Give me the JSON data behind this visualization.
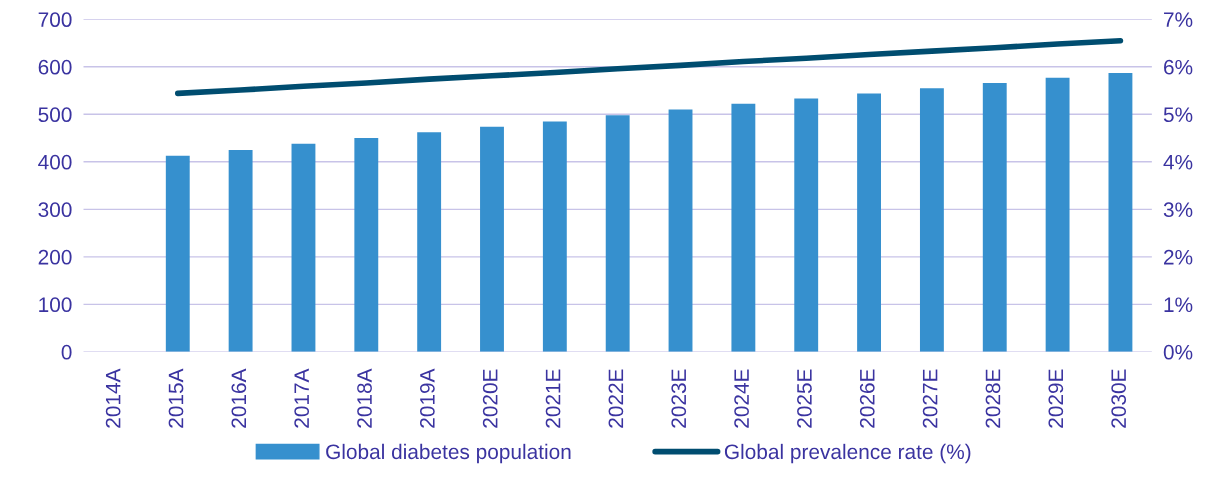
{
  "chart_data": {
    "type": "bar",
    "categories": [
      "2014A",
      "2015A",
      "2016A",
      "2017A",
      "2018A",
      "2019A",
      "2020E",
      "2021E",
      "2022E",
      "2023E",
      "2024E",
      "2025E",
      "2026E",
      "2027E",
      "2028E",
      "2029E",
      "2030E"
    ],
    "series": [
      {
        "name": "Global diabetes population",
        "color": "#3690ce",
        "values": [
          null,
          413,
          425,
          438,
          450,
          462,
          474,
          485,
          498,
          510,
          522,
          533,
          544,
          555,
          566,
          577,
          587
        ]
      },
      {
        "name": "Global prevalence rate (%)",
        "type": "line",
        "axis": "y2",
        "color": "#004d70",
        "values": [
          null,
          5.44,
          5.51,
          5.59,
          5.66,
          5.74,
          5.81,
          5.88,
          5.96,
          6.03,
          6.11,
          6.18,
          6.26,
          6.33,
          6.4,
          6.48,
          6.55
        ]
      }
    ],
    "ylim": [
      0,
      700
    ],
    "yticks": [
      0,
      100,
      200,
      300,
      400,
      500,
      600,
      700
    ],
    "y2lim": [
      0,
      7
    ],
    "y2ticks": [
      {
        "value": 0,
        "label": "0%"
      },
      {
        "value": 1,
        "label": "1%"
      },
      {
        "value": 2,
        "label": "2%"
      },
      {
        "value": 3,
        "label": "3%"
      },
      {
        "value": 4,
        "label": "4%"
      },
      {
        "value": 5,
        "label": "5%"
      },
      {
        "value": 6,
        "label": "6%"
      },
      {
        "value": 7,
        "label": "7%"
      }
    ],
    "grid": "y",
    "legend": "bottom",
    "marker": "none",
    "line_style": "solid"
  }
}
